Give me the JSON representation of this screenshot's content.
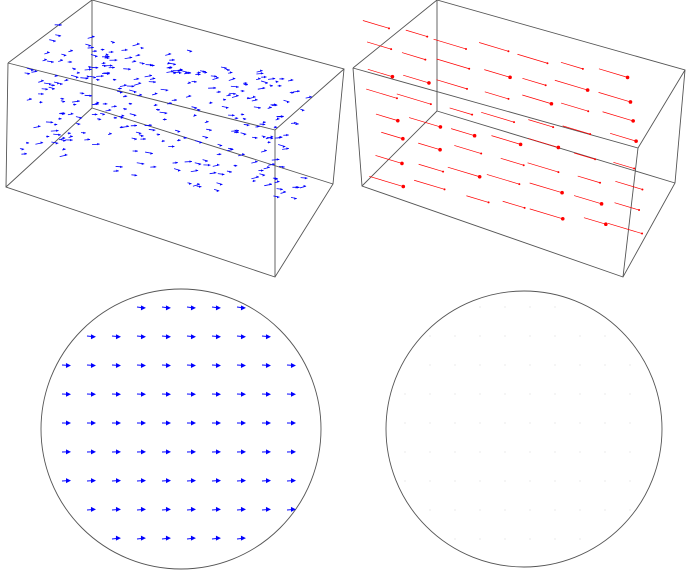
{
  "panels": [
    {
      "id": "box-left",
      "kind": "box-vector-field",
      "color": "#0000ff",
      "marker": "arrowhead"
    },
    {
      "id": "box-right",
      "kind": "box-vector-field",
      "color": "#ff0000",
      "marker": "dot"
    },
    {
      "id": "disk-left",
      "kind": "disk-vector-field",
      "color": "#0000ff",
      "marker": "arrowhead"
    },
    {
      "id": "disk-right",
      "kind": "disk-vector-field",
      "color": "#c8c8c8",
      "marker": "faint-dot"
    }
  ]
}
